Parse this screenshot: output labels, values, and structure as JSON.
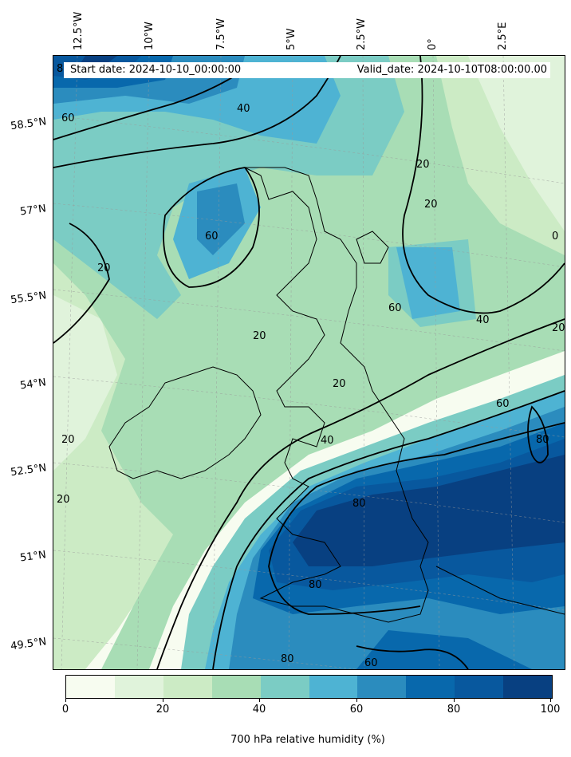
{
  "header": {
    "start_date": "Start date: 2024-10-10_00:00:00",
    "valid_date": "Valid_date: 2024-10-10T08:00:00.00"
  },
  "longitude_labels": [
    "12.5°W",
    "10°W",
    "7.5°W",
    "5°W",
    "2.5°W",
    "0°",
    "2.5°E"
  ],
  "latitude_labels": [
    "58.5°N",
    "57°N",
    "55.5°N",
    "54°N",
    "52.5°N",
    "51°N",
    "49.5°N"
  ],
  "contour_labels": [
    "20",
    "40",
    "60",
    "80",
    "0"
  ],
  "colorbar": {
    "title": "700 hPa relative humidity (%)",
    "ticks": [
      "0",
      "20",
      "40",
      "60",
      "80",
      "100"
    ],
    "colors": [
      "#f7fcf0",
      "#e0f3db",
      "#ccebc5",
      "#a8ddb5",
      "#7bccc4",
      "#4eb3d3",
      "#2b8cbe",
      "#0868ac",
      "#08589e",
      "#084081"
    ]
  },
  "chart_data": {
    "type": "heatmap",
    "title": "",
    "variable": "700 hPa relative humidity (%)",
    "value_range": [
      0,
      100
    ],
    "levels": [
      0,
      10,
      20,
      30,
      40,
      50,
      60,
      70,
      80,
      90,
      100
    ],
    "contour_lines": [
      20,
      40,
      60,
      80
    ],
    "lon_ticks": [
      -12.5,
      -10,
      -7.5,
      -5,
      -2.5,
      0,
      2.5
    ],
    "lat_ticks": [
      58.5,
      57,
      55.5,
      54,
      52.5,
      51,
      49.5
    ]
  }
}
